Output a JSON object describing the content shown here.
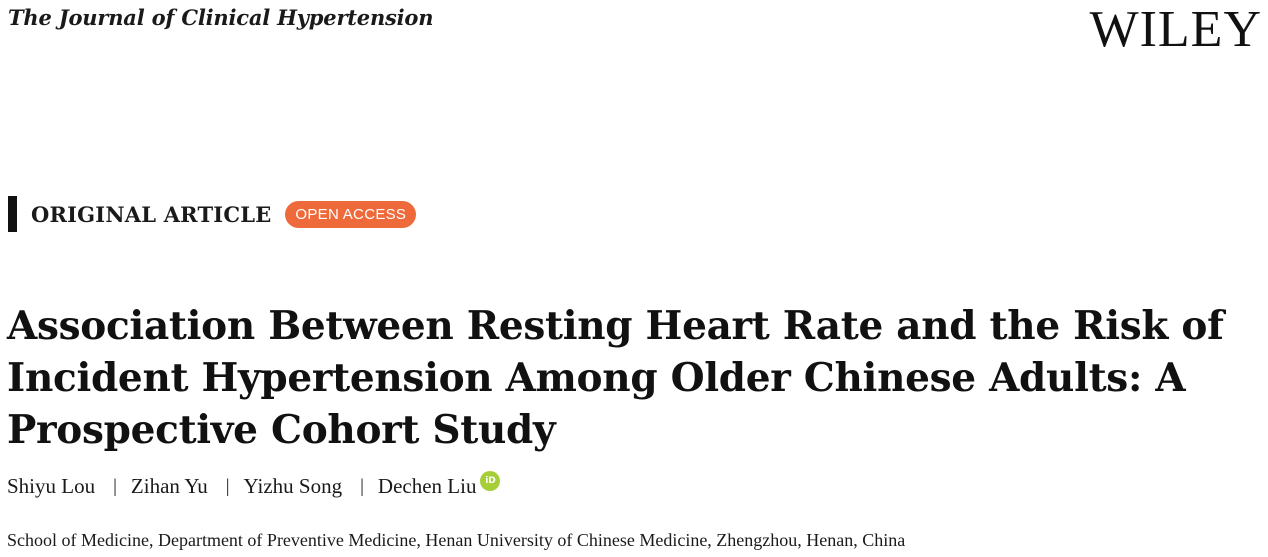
{
  "header": {
    "journal_name": "The Journal of Clinical Hypertension",
    "publisher": "WILEY"
  },
  "article": {
    "type": "ORIGINAL ARTICLE",
    "access_badge": "OPEN ACCESS",
    "title": "Association Between Resting Heart Rate and the Risk of Incident Hypertension Among Older Chinese Adults: A Prospective Cohort Study",
    "authors": [
      {
        "name": "Shiyu Lou"
      },
      {
        "name": "Zihan Yu"
      },
      {
        "name": "Yizhu Song"
      },
      {
        "name": "Dechen Liu",
        "orcid_icon": "orcid-icon"
      }
    ],
    "author_separator": "|",
    "affiliation": "School of Medicine, Department of Preventive Medicine, Henan University of Chinese Medicine, Zhengzhou, Henan, China"
  },
  "colors": {
    "open_access_badge": "#ef6a3a",
    "orcid": "#a6ce39"
  }
}
